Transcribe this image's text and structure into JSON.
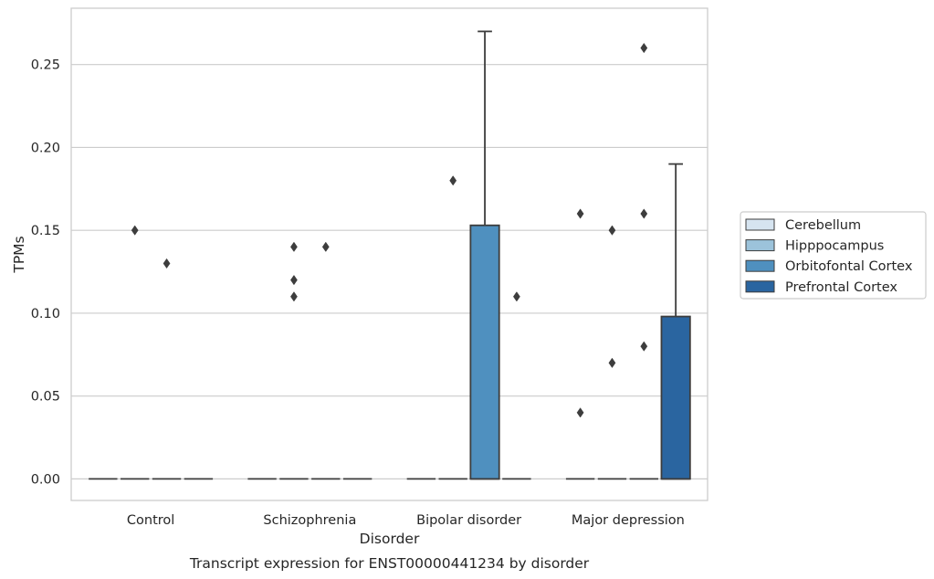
{
  "chart_data": {
    "type": "box",
    "title": "",
    "caption": "Transcript expression for ENST00000441234 by disorder",
    "xlabel": "Disorder",
    "ylabel": "TPMs",
    "categories": [
      "Control",
      "Schizophrenia",
      "Bipolar disorder",
      "Major depression"
    ],
    "ylim": [
      -0.013,
      0.284
    ],
    "yticks": [
      0.0,
      0.05,
      0.1,
      0.15,
      0.2,
      0.25
    ],
    "ytick_labels": [
      "0.00",
      "0.05",
      "0.10",
      "0.15",
      "0.20",
      "0.25"
    ],
    "grid": "horizontal",
    "legend_position": "right",
    "series": [
      {
        "name": "Cerebellum",
        "color": "#d6e4f0",
        "boxes": [
          {
            "q1": 0,
            "median": 0,
            "q3": 0,
            "whisker_low": 0,
            "whisker_high": 0,
            "outliers": []
          },
          {
            "q1": 0,
            "median": 0,
            "q3": 0,
            "whisker_low": 0,
            "whisker_high": 0,
            "outliers": []
          },
          {
            "q1": 0,
            "median": 0,
            "q3": 0,
            "whisker_low": 0,
            "whisker_high": 0,
            "outliers": []
          },
          {
            "q1": 0,
            "median": 0,
            "q3": 0,
            "whisker_low": 0,
            "whisker_high": 0,
            "outliers": [
              0.16,
              0.04
            ]
          }
        ]
      },
      {
        "name": "Hipppocampus",
        "color": "#9cc3db",
        "boxes": [
          {
            "q1": 0,
            "median": 0,
            "q3": 0,
            "whisker_low": 0,
            "whisker_high": 0,
            "outliers": [
              0.15
            ]
          },
          {
            "q1": 0,
            "median": 0,
            "q3": 0,
            "whisker_low": 0,
            "whisker_high": 0,
            "outliers": [
              0.14,
              0.12,
              0.11
            ]
          },
          {
            "q1": 0,
            "median": 0,
            "q3": 0,
            "whisker_low": 0,
            "whisker_high": 0,
            "outliers": [
              0.18
            ]
          },
          {
            "q1": 0,
            "median": 0,
            "q3": 0,
            "whisker_low": 0,
            "whisker_high": 0,
            "outliers": [
              0.15,
              0.07
            ]
          }
        ]
      },
      {
        "name": "Orbitofontal Cortex",
        "color": "#4f90bf",
        "boxes": [
          {
            "q1": 0,
            "median": 0,
            "q3": 0,
            "whisker_low": 0,
            "whisker_high": 0,
            "outliers": [
              0.13
            ]
          },
          {
            "q1": 0,
            "median": 0,
            "q3": 0,
            "whisker_low": 0,
            "whisker_high": 0,
            "outliers": [
              0.14
            ]
          },
          {
            "q1": 0,
            "median": 0,
            "q3": 0.153,
            "whisker_low": 0,
            "whisker_high": 0.27,
            "outliers": []
          },
          {
            "q1": 0,
            "median": 0,
            "q3": 0,
            "whisker_low": 0,
            "whisker_high": 0,
            "outliers": [
              0.26,
              0.16,
              0.08
            ]
          }
        ]
      },
      {
        "name": "Prefrontal Cortex",
        "color": "#2a65a0",
        "boxes": [
          {
            "q1": 0,
            "median": 0,
            "q3": 0,
            "whisker_low": 0,
            "whisker_high": 0,
            "outliers": []
          },
          {
            "q1": 0,
            "median": 0,
            "q3": 0,
            "whisker_low": 0,
            "whisker_high": 0,
            "outliers": []
          },
          {
            "q1": 0,
            "median": 0,
            "q3": 0,
            "whisker_low": 0,
            "whisker_high": 0,
            "outliers": [
              0.11
            ]
          },
          {
            "q1": 0,
            "median": 0,
            "q3": 0.098,
            "whisker_low": 0,
            "whisker_high": 0.19,
            "outliers": []
          }
        ]
      }
    ]
  }
}
